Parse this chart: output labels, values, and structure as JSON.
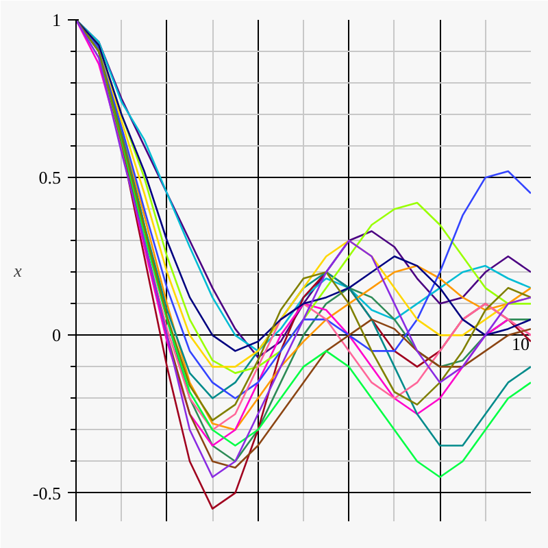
{
  "chart_data": {
    "type": "line",
    "ylabel": "x",
    "ylim": [
      -0.59,
      1
    ],
    "yticks": [
      -0.5,
      0,
      0.5,
      1
    ],
    "grid": true,
    "marker": "none",
    "line_style": "solid",
    "categories": [
      null,
      null,
      null,
      null,
      null,
      null,
      null,
      null,
      null,
      null,
      null,
      null,
      null,
      null,
      null,
      null,
      null,
      null,
      null,
      null,
      "10"
    ],
    "series": [
      {
        "color": "#4b0082",
        "values": [
          1,
          0.93,
          0.75,
          0.6,
          0.45,
          0.3,
          0.15,
          0.02,
          -0.07,
          -0.02,
          0.1,
          0.2,
          0.3,
          0.33,
          0.28,
          0.18,
          0.1,
          0.12,
          0.2,
          0.25,
          0.2
        ]
      },
      {
        "color": "#00bcd4",
        "values": [
          1,
          0.93,
          0.74,
          0.62,
          0.45,
          0.28,
          0.12,
          0.0,
          -0.05,
          0.02,
          0.12,
          0.18,
          0.15,
          0.08,
          0.05,
          0.1,
          0.15,
          0.2,
          0.22,
          0.18,
          0.15
        ]
      },
      {
        "color": "#2e8b57",
        "values": [
          1,
          0.92,
          0.65,
          0.35,
          0.05,
          -0.2,
          -0.35,
          -0.4,
          -0.3,
          -0.15,
          0.0,
          0.1,
          0.15,
          0.12,
          0.05,
          -0.05,
          -0.1,
          -0.08,
          0.0,
          0.05,
          0.05
        ]
      },
      {
        "color": "#a0001e",
        "values": [
          1,
          0.9,
          0.6,
          0.25,
          -0.1,
          -0.4,
          -0.55,
          -0.5,
          -0.3,
          -0.05,
          0.12,
          0.2,
          0.15,
          0.05,
          -0.05,
          -0.1,
          -0.05,
          0.05,
          0.1,
          0.05,
          -0.02
        ]
      },
      {
        "color": "#ff9900",
        "values": [
          1,
          0.91,
          0.65,
          0.38,
          0.1,
          -0.15,
          -0.28,
          -0.3,
          -0.2,
          -0.1,
          -0.02,
          0.05,
          0.1,
          0.15,
          0.2,
          0.22,
          0.18,
          0.12,
          0.08,
          0.1,
          0.15
        ]
      },
      {
        "color": "#ff00cc",
        "values": [
          1,
          0.86,
          0.6,
          0.28,
          -0.02,
          -0.25,
          -0.35,
          -0.3,
          -0.15,
          0.0,
          0.1,
          0.08,
          0.0,
          -0.1,
          -0.2,
          -0.25,
          -0.2,
          -0.1,
          0.0,
          0.05,
          0.0
        ]
      },
      {
        "color": "#008b8b",
        "values": [
          1,
          0.91,
          0.64,
          0.35,
          0.08,
          -0.12,
          -0.2,
          -0.15,
          -0.05,
          0.05,
          0.15,
          0.2,
          0.15,
          0.05,
          -0.1,
          -0.25,
          -0.35,
          -0.35,
          -0.25,
          -0.15,
          -0.1
        ]
      },
      {
        "color": "#99ff00",
        "values": [
          1,
          0.92,
          0.7,
          0.5,
          0.25,
          0.05,
          -0.08,
          -0.12,
          -0.1,
          -0.05,
          0.05,
          0.15,
          0.25,
          0.35,
          0.4,
          0.42,
          0.35,
          0.25,
          0.15,
          0.1,
          0.1
        ]
      },
      {
        "color": "#3344ff",
        "values": [
          1,
          0.91,
          0.66,
          0.4,
          0.15,
          -0.05,
          -0.15,
          -0.2,
          -0.15,
          -0.05,
          0.05,
          0.05,
          0.0,
          -0.05,
          -0.05,
          0.05,
          0.2,
          0.38,
          0.5,
          0.52,
          0.45
        ]
      },
      {
        "color": "#ffd700",
        "values": [
          1,
          0.92,
          0.68,
          0.45,
          0.2,
          0.0,
          -0.1,
          -0.1,
          -0.05,
          0.05,
          0.15,
          0.25,
          0.3,
          0.25,
          0.15,
          0.05,
          0.0,
          0.0,
          0.05,
          0.1,
          0.12
        ]
      },
      {
        "color": "#ff6699",
        "values": [
          1,
          0.9,
          0.6,
          0.3,
          0.02,
          -0.2,
          -0.3,
          -0.25,
          -0.1,
          0.05,
          0.1,
          0.05,
          -0.05,
          -0.15,
          -0.2,
          -0.15,
          -0.05,
          0.05,
          0.1,
          0.05,
          0.0
        ]
      },
      {
        "color": "#8b4513",
        "values": [
          1,
          0.9,
          0.61,
          0.3,
          0.0,
          -0.25,
          -0.4,
          -0.42,
          -0.35,
          -0.25,
          -0.15,
          -0.05,
          0.0,
          0.05,
          0.02,
          -0.05,
          -0.1,
          -0.1,
          -0.05,
          0.0,
          0.02
        ]
      },
      {
        "color": "#00ff44",
        "values": [
          1,
          0.9,
          0.62,
          0.32,
          0.05,
          -0.18,
          -0.3,
          -0.35,
          -0.3,
          -0.2,
          -0.1,
          -0.05,
          -0.1,
          -0.2,
          -0.3,
          -0.4,
          -0.45,
          -0.4,
          -0.3,
          -0.2,
          -0.15
        ]
      },
      {
        "color": "#000080",
        "values": [
          1,
          0.92,
          0.7,
          0.52,
          0.3,
          0.12,
          0.0,
          -0.05,
          -0.02,
          0.05,
          0.1,
          0.12,
          0.15,
          0.2,
          0.25,
          0.22,
          0.15,
          0.05,
          0.0,
          0.02,
          0.05
        ]
      },
      {
        "color": "#808000",
        "values": [
          1,
          0.9,
          0.63,
          0.34,
          0.06,
          -0.16,
          -0.27,
          -0.22,
          -0.08,
          0.08,
          0.18,
          0.2,
          0.1,
          -0.05,
          -0.18,
          -0.22,
          -0.15,
          -0.05,
          0.08,
          0.15,
          0.12
        ]
      },
      {
        "color": "#8a2be2",
        "values": [
          1,
          0.88,
          0.58,
          0.3,
          0.0,
          -0.3,
          -0.45,
          -0.4,
          -0.25,
          -0.1,
          0.05,
          0.2,
          0.3,
          0.25,
          0.1,
          -0.05,
          -0.15,
          -0.1,
          0.0,
          0.1,
          0.12
        ]
      }
    ]
  }
}
